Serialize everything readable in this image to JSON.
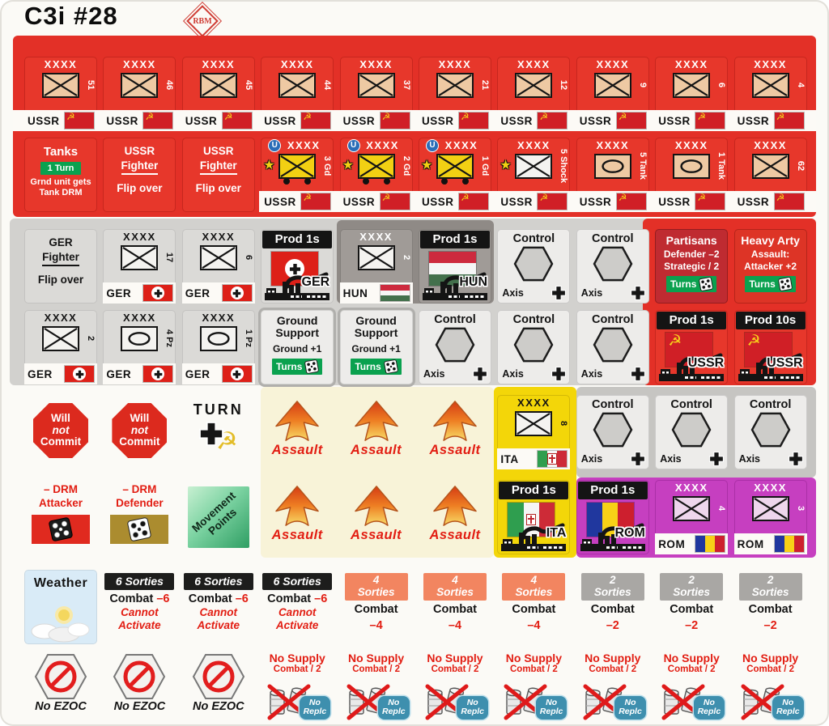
{
  "header": {
    "title": "C3i #28",
    "logo": "RBM"
  },
  "palette": {
    "sheet_red": "#e33027",
    "light_gray": "#d2d1ce",
    "dark_gray": "#8f8a86",
    "control_gray": "#c6c5c2",
    "cream": "#f8f3d8",
    "yellow": "#f3d609",
    "magenta": "#c63fc0",
    "badge_green": "#0aa14f",
    "badge_blue": "#3e8fae",
    "red_text": "#e21d12",
    "gold": "#ab8c2f"
  },
  "icons": {
    "hammer_sickle": "☭",
    "star": "★",
    "u_circle": "U"
  },
  "rows": [
    {
      "counters": [
        {
          "type": "unit",
          "nation": "USSR",
          "top": "XXXX",
          "num": "51",
          "symbol": "inf",
          "box": "tan",
          "variant": "red"
        },
        {
          "type": "unit",
          "nation": "USSR",
          "top": "XXXX",
          "num": "46",
          "symbol": "inf",
          "box": "tan",
          "variant": "red"
        },
        {
          "type": "unit",
          "nation": "USSR",
          "top": "XXXX",
          "num": "45",
          "symbol": "inf",
          "box": "tan",
          "variant": "red"
        },
        {
          "type": "unit",
          "nation": "USSR",
          "top": "XXXX",
          "num": "44",
          "symbol": "inf",
          "box": "tan",
          "variant": "red"
        },
        {
          "type": "unit",
          "nation": "USSR",
          "top": "XXXX",
          "num": "37",
          "symbol": "inf",
          "box": "tan",
          "variant": "red"
        },
        {
          "type": "unit",
          "nation": "USSR",
          "top": "XXXX",
          "num": "21",
          "symbol": "inf",
          "box": "tan",
          "variant": "red"
        },
        {
          "type": "unit",
          "nation": "USSR",
          "top": "XXXX",
          "num": "12",
          "symbol": "inf",
          "box": "tan",
          "variant": "red"
        },
        {
          "type": "unit",
          "nation": "USSR",
          "top": "XXXX",
          "num": "9",
          "symbol": "inf",
          "box": "tan",
          "variant": "red"
        },
        {
          "type": "unit",
          "nation": "USSR",
          "top": "XXXX",
          "num": "6",
          "symbol": "inf",
          "box": "tan",
          "variant": "red"
        },
        {
          "type": "unit",
          "nation": "USSR",
          "top": "XXXX",
          "num": "4",
          "symbol": "inf",
          "box": "tan",
          "variant": "red"
        }
      ]
    },
    {
      "counters": [
        {
          "type": "text",
          "variant": "red",
          "lines": [
            {
              "t": "Tanks",
              "cls": "l-big"
            },
            {
              "t": "1 Turn",
              "cls": "l-badge"
            },
            {
              "t": "Grnd unit gets",
              "cls": "l-sm"
            },
            {
              "t": "Tank DRM",
              "cls": "l-sm"
            }
          ]
        },
        {
          "type": "text",
          "variant": "red",
          "lines": [
            {
              "t": "USSR",
              "cls": "l-md"
            },
            {
              "t": "Fighter",
              "cls": "l-md l-under"
            },
            {
              "t": "Flip over",
              "cls": "l-md l-gap"
            }
          ]
        },
        {
          "type": "text",
          "variant": "red",
          "lines": [
            {
              "t": "USSR",
              "cls": "l-md"
            },
            {
              "t": "Fighter",
              "cls": "l-md l-under"
            },
            {
              "t": "Flip over",
              "cls": "l-md l-gap"
            }
          ]
        },
        {
          "type": "unit",
          "nation": "USSR",
          "top": "XXXX",
          "num": "3 Gd",
          "symbol": "inf",
          "box": "yellow",
          "variant": "red",
          "badges": [
            "u",
            "star",
            "wheels"
          ]
        },
        {
          "type": "unit",
          "nation": "USSR",
          "top": "XXXX",
          "num": "2 Gd",
          "symbol": "inf",
          "box": "yellow",
          "variant": "red",
          "badges": [
            "u",
            "star",
            "wheels"
          ]
        },
        {
          "type": "unit",
          "nation": "USSR",
          "top": "XXXX",
          "num": "1 Gd",
          "symbol": "inf",
          "box": "yellow",
          "variant": "red",
          "badges": [
            "u",
            "star",
            "wheels"
          ]
        },
        {
          "type": "unit",
          "nation": "USSR",
          "top": "XXXX",
          "num": "5 Shock",
          "symbol": "inf",
          "box": "white",
          "variant": "red",
          "badges": [
            "star"
          ]
        },
        {
          "type": "unit",
          "nation": "USSR",
          "top": "XXXX",
          "num": "5 Tank",
          "symbol": "armor",
          "box": "tan",
          "variant": "red"
        },
        {
          "type": "unit",
          "nation": "USSR",
          "top": "XXXX",
          "num": "1 Tank",
          "symbol": "armor",
          "box": "tan",
          "variant": "red"
        },
        {
          "type": "unit",
          "nation": "USSR",
          "top": "XXXX",
          "num": "62",
          "symbol": "inf",
          "box": "tan",
          "variant": "red"
        }
      ]
    },
    {
      "counters": [
        {
          "type": "text",
          "variant": "lightgray",
          "lines": [
            {
              "t": "GER",
              "cls": "l-md"
            },
            {
              "t": "Fighter",
              "cls": "l-md l-under"
            },
            {
              "t": "Flip over",
              "cls": "l-md l-gap"
            }
          ]
        },
        {
          "type": "unit",
          "nation": "GER",
          "top": "XXXX",
          "num": "17",
          "symbol": "inf",
          "box": "white",
          "variant": "lightgray"
        },
        {
          "type": "unit",
          "nation": "GER",
          "top": "XXXX",
          "num": "6",
          "symbol": "inf",
          "box": "white",
          "variant": "lightgray"
        },
        {
          "type": "prod",
          "banner": "Prod 1s",
          "nation": "GER",
          "variant": "lightgray"
        },
        {
          "type": "unit",
          "nation": "HUN",
          "top": "XXXX",
          "num": "2",
          "symbol": "inf",
          "box": "white",
          "variant": "darkgray"
        },
        {
          "type": "prod",
          "banner": "Prod 1s",
          "nation": "HUN",
          "variant": "darkgray"
        },
        {
          "type": "control",
          "title": "Control",
          "side": "Axis",
          "variant": "control"
        },
        {
          "type": "control",
          "title": "Control",
          "side": "Axis",
          "variant": "control"
        },
        {
          "type": "info",
          "variant": "redface-dark",
          "lines": [
            {
              "t": "Partisans",
              "cls": "i-big"
            },
            {
              "t": "Defender –2",
              "cls": "i-md"
            },
            {
              "t": "Strategic / 2",
              "cls": "i-md"
            }
          ],
          "badge": "Turns"
        },
        {
          "type": "info",
          "variant": "redface",
          "lines": [
            {
              "t": "Heavy Arty",
              "cls": "i-big"
            },
            {
              "t": "Assault:",
              "cls": "i-md"
            },
            {
              "t": "Attacker +2",
              "cls": "i-md"
            }
          ],
          "badge": "Turns"
        }
      ]
    },
    {
      "counters": [
        {
          "type": "unit",
          "nation": "GER",
          "top": "XXXX",
          "num": "2",
          "symbol": "inf",
          "box": "white",
          "variant": "lightgray"
        },
        {
          "type": "unit",
          "nation": "GER",
          "top": "XXXX",
          "num": "4 Pz",
          "symbol": "armor",
          "box": "white",
          "variant": "lightgray"
        },
        {
          "type": "unit",
          "nation": "GER",
          "top": "XXXX",
          "num": "1 Pz",
          "symbol": "armor",
          "box": "white",
          "variant": "lightgray"
        },
        {
          "type": "info",
          "variant": "grayface",
          "lines": [
            {
              "t": "Ground",
              "cls": "i-big tight"
            },
            {
              "t": "Support",
              "cls": "i-big tight"
            },
            {
              "t": "Ground +1",
              "cls": "i-md l-gap"
            }
          ],
          "badge": "Turns"
        },
        {
          "type": "info",
          "variant": "grayface",
          "lines": [
            {
              "t": "Ground",
              "cls": "i-big tight"
            },
            {
              "t": "Support",
              "cls": "i-big tight"
            },
            {
              "t": "Ground +1",
              "cls": "i-md l-gap"
            }
          ],
          "badge": "Turns"
        },
        {
          "type": "control",
          "title": "Control",
          "side": "Axis",
          "variant": "control"
        },
        {
          "type": "control",
          "title": "Control",
          "side": "Axis",
          "variant": "control"
        },
        {
          "type": "control",
          "title": "Control",
          "side": "Axis",
          "variant": "control"
        },
        {
          "type": "prod",
          "banner": "Prod 1s",
          "nation": "USSR",
          "variant": "red"
        },
        {
          "type": "prod",
          "banner": "Prod 10s",
          "nation": "USSR",
          "variant": "red"
        }
      ]
    },
    {
      "counters": [
        {
          "type": "octagon",
          "variant": "none",
          "lines": [
            "Will",
            "not",
            "Commit"
          ]
        },
        {
          "type": "octagon",
          "variant": "none",
          "lines": [
            "Will",
            "not",
            "Commit"
          ]
        },
        {
          "type": "turn",
          "variant": "none",
          "label": "TURN"
        },
        {
          "type": "assault",
          "variant": "none",
          "label": "Assault"
        },
        {
          "type": "assault",
          "variant": "none",
          "label": "Assault"
        },
        {
          "type": "assault",
          "variant": "none",
          "label": "Assault"
        },
        {
          "type": "unit",
          "nation": "ITA",
          "top": "XXXX",
          "num": "8",
          "symbol": "inf",
          "box": "white",
          "variant": "yellow"
        },
        {
          "type": "control",
          "title": "Control",
          "side": "Axis",
          "variant": "control"
        },
        {
          "type": "control",
          "title": "Control",
          "side": "Axis",
          "variant": "control"
        },
        {
          "type": "control",
          "title": "Control",
          "side": "Axis",
          "variant": "control"
        }
      ]
    },
    {
      "counters": [
        {
          "type": "drm",
          "variant": "none",
          "lines": [
            "– DRM",
            "Attacker"
          ],
          "die": "black",
          "boxcls": "red"
        },
        {
          "type": "drm",
          "variant": "none",
          "lines": [
            "– DRM",
            "Defender"
          ],
          "die": "white",
          "boxcls": "gold"
        },
        {
          "type": "movement",
          "variant": "none",
          "lines": [
            "Movement",
            "Points"
          ]
        },
        {
          "type": "assault",
          "variant": "none",
          "label": "Assault"
        },
        {
          "type": "assault",
          "variant": "none",
          "label": "Assault"
        },
        {
          "type": "assault",
          "variant": "none",
          "label": "Assault"
        },
        {
          "type": "prod",
          "banner": "Prod 1s",
          "nation": "ITA",
          "variant": "yellow"
        },
        {
          "type": "prod",
          "banner": "Prod 1s",
          "nation": "ROM",
          "variant": "magenta"
        },
        {
          "type": "unit",
          "nation": "ROM",
          "top": "XXXX",
          "num": "4",
          "symbol": "inf",
          "box": "pink",
          "variant": "magenta"
        },
        {
          "type": "unit",
          "nation": "ROM",
          "top": "XXXX",
          "num": "3",
          "symbol": "inf",
          "box": "pink",
          "variant": "magenta"
        }
      ]
    },
    {
      "counters": [
        {
          "type": "weather",
          "variant": "none",
          "label": "Weather"
        },
        {
          "type": "sorties",
          "variant": "none",
          "banner": [
            "6 Sorties"
          ],
          "bcls": "b-black",
          "combat": "Combat",
          "mod": "–6",
          "inline": true,
          "extra": [
            "Cannot",
            "Activate"
          ]
        },
        {
          "type": "sorties",
          "variant": "none",
          "banner": [
            "6 Sorties"
          ],
          "bcls": "b-black",
          "combat": "Combat",
          "mod": "–6",
          "inline": true,
          "extra": [
            "Cannot",
            "Activate"
          ]
        },
        {
          "type": "sorties",
          "variant": "none",
          "banner": [
            "6 Sorties"
          ],
          "bcls": "b-black",
          "combat": "Combat",
          "mod": "–6",
          "inline": true,
          "extra": [
            "Cannot",
            "Activate"
          ]
        },
        {
          "type": "sorties",
          "variant": "none",
          "banner": [
            "4",
            "Sorties"
          ],
          "bcls": "b-orange",
          "combat": "Combat",
          "mod": "–4",
          "inline": false
        },
        {
          "type": "sorties",
          "variant": "none",
          "banner": [
            "4",
            "Sorties"
          ],
          "bcls": "b-orange",
          "combat": "Combat",
          "mod": "–4",
          "inline": false
        },
        {
          "type": "sorties",
          "variant": "none",
          "banner": [
            "4",
            "Sorties"
          ],
          "bcls": "b-orange",
          "combat": "Combat",
          "mod": "–4",
          "inline": false
        },
        {
          "type": "sorties",
          "variant": "none",
          "banner": [
            "2",
            "Sorties"
          ],
          "bcls": "b-gray",
          "combat": "Combat",
          "mod": "–2",
          "inline": false
        },
        {
          "type": "sorties",
          "variant": "none",
          "banner": [
            "2",
            "Sorties"
          ],
          "bcls": "b-gray",
          "combat": "Combat",
          "mod": "–2",
          "inline": false
        },
        {
          "type": "sorties",
          "variant": "none",
          "banner": [
            "2",
            "Sorties"
          ],
          "bcls": "b-gray",
          "combat": "Combat",
          "mod": "–2",
          "inline": false
        }
      ]
    },
    {
      "counters": [
        {
          "type": "noezoc",
          "variant": "none",
          "label": "No EZOC"
        },
        {
          "type": "noezoc",
          "variant": "none",
          "label": "No EZOC"
        },
        {
          "type": "noezoc",
          "variant": "none",
          "label": "No EZOC"
        },
        {
          "type": "nosupply",
          "variant": "none",
          "title": "No Supply",
          "sub": "Combat / 2",
          "badge": [
            "No",
            "Replc"
          ]
        },
        {
          "type": "nosupply",
          "variant": "none",
          "title": "No Supply",
          "sub": "Combat / 2",
          "badge": [
            "No",
            "Replc"
          ]
        },
        {
          "type": "nosupply",
          "variant": "none",
          "title": "No Supply",
          "sub": "Combat / 2",
          "badge": [
            "No",
            "Replc"
          ]
        },
        {
          "type": "nosupply",
          "variant": "none",
          "title": "No Supply",
          "sub": "Combat / 2",
          "badge": [
            "No",
            "Replc"
          ]
        },
        {
          "type": "nosupply",
          "variant": "none",
          "title": "No Supply",
          "sub": "Combat / 2",
          "badge": [
            "No",
            "Replc"
          ]
        },
        {
          "type": "nosupply",
          "variant": "none",
          "title": "No Supply",
          "sub": "Combat / 2",
          "badge": [
            "No",
            "Replc"
          ]
        },
        {
          "type": "nosupply",
          "variant": "none",
          "title": "No Supply",
          "sub": "Combat / 2",
          "badge": [
            "No",
            "Replc"
          ]
        }
      ]
    }
  ]
}
